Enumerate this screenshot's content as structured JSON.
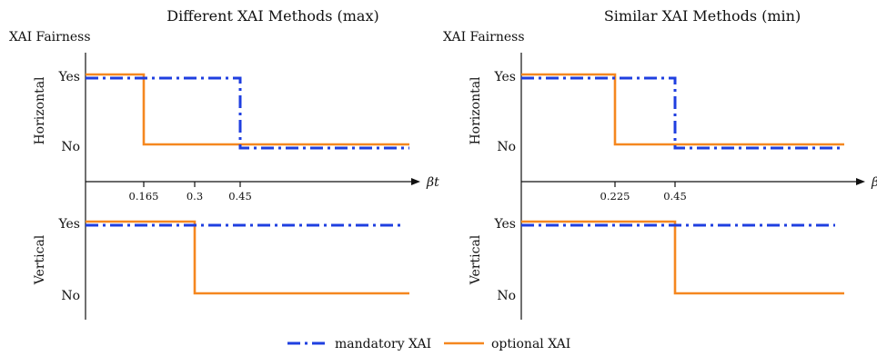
{
  "colors": {
    "mandatory": "#1f3fe0",
    "optional": "#f5871f",
    "axis": "#111111"
  },
  "legend": [
    {
      "key": "mandatory",
      "label": "mandatory XAI",
      "style": "dashdot"
    },
    {
      "key": "optional",
      "label": "optional XAI",
      "style": "solid"
    }
  ],
  "chart_data": [
    {
      "type": "line",
      "step": true,
      "title": "Different XAI Methods (max)",
      "ylabel": "XAI Fairness",
      "xlabel": "βt",
      "xticks": [
        "0.165",
        "0.3",
        "0.45"
      ],
      "xtick_values": [
        0.165,
        0.3,
        0.45
      ],
      "xlim": [
        0,
        0.6
      ],
      "yticks": [
        "Yes",
        "No"
      ],
      "subplots": [
        {
          "name": "Horizontal",
          "series": [
            {
              "key": "mandatory",
              "breakpoint": 0.45,
              "from": "Yes",
              "to": "No"
            },
            {
              "key": "optional",
              "breakpoint": 0.165,
              "from": "Yes",
              "to": "No"
            }
          ]
        },
        {
          "name": "Vertical",
          "series": [
            {
              "key": "mandatory",
              "breakpoint": null,
              "from": "Yes",
              "to": "Yes",
              "end": 0.55
            },
            {
              "key": "optional",
              "breakpoint": 0.3,
              "from": "Yes",
              "to": "No"
            }
          ]
        }
      ]
    },
    {
      "type": "line",
      "step": true,
      "title": "Similar XAI Methods (min)",
      "ylabel": "XAI Fairness",
      "xlabel": "βt",
      "xticks": [
        "0.225",
        "0.45"
      ],
      "xtick_values": [
        0.225,
        0.45
      ],
      "xlim": [
        0,
        0.6
      ],
      "yticks": [
        "Yes",
        "No"
      ],
      "subplots": [
        {
          "name": "Horizontal",
          "series": [
            {
              "key": "mandatory",
              "breakpoint": 0.45,
              "from": "Yes",
              "to": "No"
            },
            {
              "key": "optional",
              "breakpoint": 0.225,
              "from": "Yes",
              "to": "No"
            }
          ]
        },
        {
          "name": "Vertical",
          "series": [
            {
              "key": "mandatory",
              "breakpoint": null,
              "from": "Yes",
              "to": "Yes",
              "end": 0.55
            },
            {
              "key": "optional",
              "breakpoint": 0.45,
              "from": "Yes",
              "to": "No"
            }
          ]
        }
      ]
    }
  ]
}
